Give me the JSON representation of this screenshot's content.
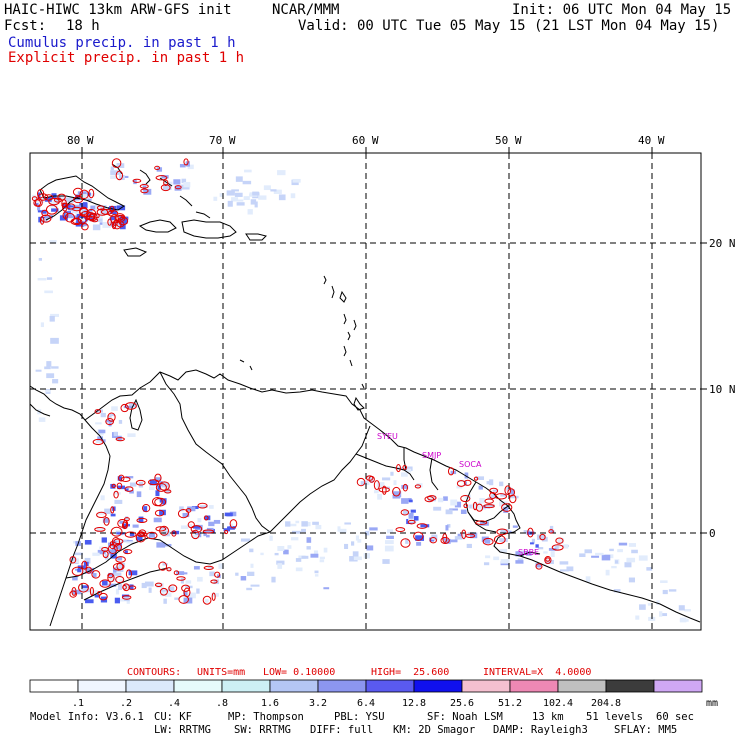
{
  "header": {
    "model_title": "HAIC-HIWC 13km ARW-GFS init",
    "org": "NCAR/MMM",
    "init": "Init: 06 UTC Mon 04 May 15",
    "fcst_label": "Fcst:",
    "fcst_value": "18 h",
    "valid": "Valid: 00 UTC Tue 05 May 15 (21 LST Mon 04 May 15)",
    "legend_cumulus": "Cumulus precip. in past 1 h",
    "legend_explicit": "Explicit precip. in past 1 h"
  },
  "map": {
    "lon_labels": [
      "80 W",
      "70 W",
      "60 W",
      "50 W",
      "40 W"
    ],
    "lat_labels": [
      "20 N",
      "10 N",
      "0"
    ],
    "stations": [
      "SYEU",
      "SMJP",
      "SOCA",
      "SBBE"
    ],
    "colors": {
      "coast": "#000000",
      "explicit": "#e00000",
      "cumulus": "#3344ee",
      "station": "#cc00cc"
    }
  },
  "contours": {
    "prefix": "CONTOURS:",
    "units": "UNITS=mm",
    "low": "LOW= 0.10000",
    "high": "HIGH=  25.600",
    "interval": "INTERVAL=X  4.0000"
  },
  "colorbar": {
    "unit": "mm",
    "levels": [
      ".1",
      ".2",
      ".4",
      ".8",
      "1.6",
      "3.2",
      "6.4",
      "12.8",
      "25.6",
      "51.2",
      "102.4",
      "204.8"
    ],
    "colors": [
      "#ffffff",
      "#f0f6ff",
      "#dbe9fb",
      "#e6fbfb",
      "#cdf0f5",
      "#b4c6f5",
      "#8c96f0",
      "#5a5af0",
      "#1010ee",
      "#f5c0d0",
      "#ee88b4",
      "#c0c0c0",
      "#3c3c3c",
      "#d0a8f5"
    ]
  },
  "model_info": {
    "line1": [
      "Model Info: V3.6.1",
      "CU: KF",
      "MP: Thompson",
      "PBL: YSU",
      "SF: Noah LSM",
      "13 km",
      "51 levels",
      "60 sec"
    ],
    "line2": [
      "LW: RRTMG",
      "SW: RRTMG",
      "DIFF: full",
      "KM: 2D Smagor",
      "DAMP: Rayleigh3",
      "SFLAY: MM5"
    ]
  }
}
